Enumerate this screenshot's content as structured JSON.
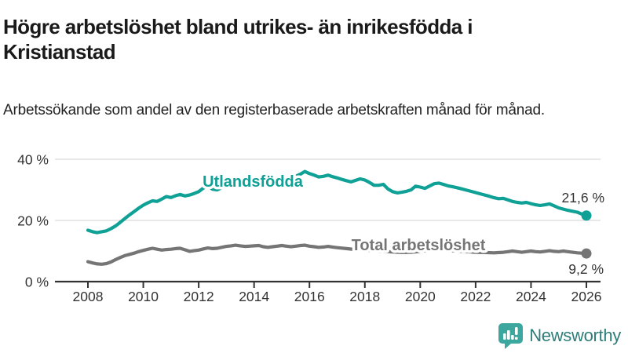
{
  "header": {
    "title": "Högre arbetslöshet bland utrikes- än inrikesfödda i Kristianstad",
    "subtitle": "Arbetssökande som andel av den registerbaserade arbetskraften månad för månad."
  },
  "footer": {
    "brand": "Newsworthy",
    "brand_color": "#2e7d78",
    "icon_color": "#3ba79e"
  },
  "chart_data": {
    "type": "line",
    "title": "",
    "xlabel": "",
    "ylabel": "",
    "xlim": [
      2006.8,
      2026.5
    ],
    "ylim": [
      0,
      43
    ],
    "grid": "horizontal",
    "x_ticks": [
      2008,
      2010,
      2012,
      2014,
      2016,
      2018,
      2020,
      2022,
      2024,
      2026
    ],
    "x_tick_labels": [
      "2008",
      "2010",
      "2012",
      "2014",
      "2016",
      "2018",
      "2020",
      "2022",
      "2024",
      "2026"
    ],
    "y_ticks": [
      0,
      20,
      40
    ],
    "y_tick_labels": [
      "0 %",
      "20 %",
      "40 %"
    ],
    "axis_color": "#333333",
    "gridline_color": "#d9d9d9",
    "series": [
      {
        "name": "Total arbetslöshet",
        "color": "#757575",
        "end_value": 9.2,
        "end_label": "9,2 %",
        "points": [
          [
            2008.0,
            6.5
          ],
          [
            2008.17,
            6.1
          ],
          [
            2008.33,
            5.8
          ],
          [
            2008.5,
            5.7
          ],
          [
            2008.67,
            5.9
          ],
          [
            2008.83,
            6.4
          ],
          [
            2009.0,
            7.2
          ],
          [
            2009.17,
            7.9
          ],
          [
            2009.33,
            8.5
          ],
          [
            2009.5,
            8.9
          ],
          [
            2009.67,
            9.3
          ],
          [
            2009.83,
            9.8
          ],
          [
            2010.0,
            10.2
          ],
          [
            2010.17,
            10.6
          ],
          [
            2010.33,
            10.9
          ],
          [
            2010.5,
            10.6
          ],
          [
            2010.67,
            10.3
          ],
          [
            2010.83,
            10.5
          ],
          [
            2011.0,
            10.6
          ],
          [
            2011.17,
            10.8
          ],
          [
            2011.33,
            10.9
          ],
          [
            2011.5,
            10.4
          ],
          [
            2011.67,
            9.9
          ],
          [
            2011.83,
            10.1
          ],
          [
            2012.0,
            10.3
          ],
          [
            2012.17,
            10.7
          ],
          [
            2012.33,
            11.0
          ],
          [
            2012.5,
            10.8
          ],
          [
            2012.67,
            10.9
          ],
          [
            2012.83,
            11.2
          ],
          [
            2013.0,
            11.5
          ],
          [
            2013.17,
            11.7
          ],
          [
            2013.33,
            11.9
          ],
          [
            2013.5,
            11.7
          ],
          [
            2013.67,
            11.5
          ],
          [
            2013.83,
            11.6
          ],
          [
            2014.0,
            11.7
          ],
          [
            2014.17,
            11.8
          ],
          [
            2014.33,
            11.4
          ],
          [
            2014.5,
            11.2
          ],
          [
            2014.67,
            11.4
          ],
          [
            2014.83,
            11.6
          ],
          [
            2015.0,
            11.8
          ],
          [
            2015.17,
            11.6
          ],
          [
            2015.33,
            11.4
          ],
          [
            2015.5,
            11.6
          ],
          [
            2015.67,
            11.8
          ],
          [
            2015.83,
            11.9
          ],
          [
            2016.0,
            11.6
          ],
          [
            2016.17,
            11.4
          ],
          [
            2016.33,
            11.2
          ],
          [
            2016.5,
            11.3
          ],
          [
            2016.67,
            11.5
          ],
          [
            2016.83,
            11.3
          ],
          [
            2017.0,
            11.1
          ],
          [
            2017.33,
            10.8
          ],
          [
            2017.67,
            10.5
          ],
          [
            2018.0,
            10.3
          ],
          [
            2018.33,
            10.1
          ],
          [
            2018.67,
            9.9
          ],
          [
            2019.0,
            9.7
          ],
          [
            2019.33,
            9.5
          ],
          [
            2019.67,
            9.6
          ],
          [
            2020.0,
            9.9
          ],
          [
            2020.33,
            10.3
          ],
          [
            2020.67,
            10.4
          ],
          [
            2021.0,
            10.2
          ],
          [
            2021.33,
            10.0
          ],
          [
            2021.67,
            9.8
          ],
          [
            2022.0,
            9.6
          ],
          [
            2022.33,
            9.5
          ],
          [
            2022.67,
            9.4
          ],
          [
            2023.0,
            9.6
          ],
          [
            2023.17,
            9.8
          ],
          [
            2023.33,
            10.0
          ],
          [
            2023.5,
            9.8
          ],
          [
            2023.67,
            9.6
          ],
          [
            2023.83,
            9.8
          ],
          [
            2024.0,
            10.0
          ],
          [
            2024.17,
            9.8
          ],
          [
            2024.33,
            9.7
          ],
          [
            2024.5,
            9.9
          ],
          [
            2024.67,
            10.1
          ],
          [
            2024.83,
            9.9
          ],
          [
            2025.0,
            9.8
          ],
          [
            2025.17,
            10.0
          ],
          [
            2025.33,
            9.8
          ],
          [
            2025.5,
            9.6
          ],
          [
            2025.67,
            9.4
          ],
          [
            2025.83,
            9.3
          ],
          [
            2026.0,
            9.2
          ]
        ]
      },
      {
        "name": "Utlandsfödda",
        "color": "#0fa096",
        "end_value": 21.6,
        "end_label": "21,6 %",
        "points": [
          [
            2008.0,
            16.8
          ],
          [
            2008.17,
            16.3
          ],
          [
            2008.33,
            16.0
          ],
          [
            2008.5,
            16.3
          ],
          [
            2008.67,
            16.6
          ],
          [
            2008.83,
            17.3
          ],
          [
            2009.0,
            18.2
          ],
          [
            2009.17,
            19.4
          ],
          [
            2009.33,
            20.6
          ],
          [
            2009.5,
            21.8
          ],
          [
            2009.67,
            22.9
          ],
          [
            2009.83,
            24.0
          ],
          [
            2010.0,
            25.0
          ],
          [
            2010.17,
            25.8
          ],
          [
            2010.33,
            26.4
          ],
          [
            2010.5,
            26.2
          ],
          [
            2010.67,
            27.0
          ],
          [
            2010.83,
            27.8
          ],
          [
            2011.0,
            27.5
          ],
          [
            2011.17,
            28.1
          ],
          [
            2011.33,
            28.5
          ],
          [
            2011.5,
            28.0
          ],
          [
            2011.67,
            28.3
          ],
          [
            2011.83,
            28.8
          ],
          [
            2012.0,
            29.4
          ],
          [
            2012.17,
            30.6
          ],
          [
            2012.33,
            31.2
          ],
          [
            2012.5,
            30.2
          ],
          [
            2012.67,
            30.0
          ],
          [
            2012.83,
            30.7
          ],
          [
            2013.0,
            31.3
          ],
          [
            2013.17,
            31.7
          ],
          [
            2013.33,
            32.1
          ],
          [
            2013.5,
            31.8
          ],
          [
            2013.67,
            32.0
          ],
          [
            2013.83,
            32.4
          ],
          [
            2014.0,
            32.8
          ],
          [
            2014.17,
            33.1
          ],
          [
            2014.33,
            33.3
          ],
          [
            2014.5,
            32.9
          ],
          [
            2014.67,
            33.1
          ],
          [
            2014.83,
            33.5
          ],
          [
            2015.0,
            33.8
          ],
          [
            2015.17,
            34.1
          ],
          [
            2015.33,
            33.9
          ],
          [
            2015.5,
            34.4
          ],
          [
            2015.67,
            35.1
          ],
          [
            2015.83,
            36.0
          ],
          [
            2016.0,
            35.3
          ],
          [
            2016.17,
            34.8
          ],
          [
            2016.33,
            34.2
          ],
          [
            2016.5,
            34.4
          ],
          [
            2016.67,
            34.8
          ],
          [
            2016.83,
            34.3
          ],
          [
            2017.0,
            33.9
          ],
          [
            2017.17,
            33.4
          ],
          [
            2017.33,
            33.0
          ],
          [
            2017.5,
            32.6
          ],
          [
            2017.67,
            33.1
          ],
          [
            2017.83,
            33.6
          ],
          [
            2018.0,
            33.2
          ],
          [
            2018.17,
            32.4
          ],
          [
            2018.33,
            31.5
          ],
          [
            2018.5,
            31.5
          ],
          [
            2018.67,
            31.8
          ],
          [
            2018.83,
            30.3
          ],
          [
            2019.0,
            29.4
          ],
          [
            2019.17,
            29.0
          ],
          [
            2019.33,
            29.2
          ],
          [
            2019.5,
            29.5
          ],
          [
            2019.67,
            30.0
          ],
          [
            2019.83,
            31.2
          ],
          [
            2020.0,
            30.9
          ],
          [
            2020.17,
            30.5
          ],
          [
            2020.33,
            31.2
          ],
          [
            2020.5,
            32.0
          ],
          [
            2020.67,
            32.2
          ],
          [
            2020.83,
            31.8
          ],
          [
            2021.0,
            31.3
          ],
          [
            2021.17,
            31.0
          ],
          [
            2021.33,
            30.7
          ],
          [
            2021.5,
            30.3
          ],
          [
            2021.67,
            29.9
          ],
          [
            2021.83,
            29.5
          ],
          [
            2022.0,
            29.1
          ],
          [
            2022.17,
            28.7
          ],
          [
            2022.33,
            28.3
          ],
          [
            2022.5,
            27.9
          ],
          [
            2022.67,
            27.4
          ],
          [
            2022.83,
            27.1
          ],
          [
            2023.0,
            27.2
          ],
          [
            2023.17,
            26.7
          ],
          [
            2023.33,
            26.2
          ],
          [
            2023.5,
            25.9
          ],
          [
            2023.67,
            25.7
          ],
          [
            2023.83,
            25.9
          ],
          [
            2024.0,
            25.5
          ],
          [
            2024.17,
            25.1
          ],
          [
            2024.33,
            24.9
          ],
          [
            2024.5,
            25.1
          ],
          [
            2024.67,
            25.4
          ],
          [
            2024.83,
            24.8
          ],
          [
            2025.0,
            24.1
          ],
          [
            2025.17,
            23.7
          ],
          [
            2025.33,
            23.3
          ],
          [
            2025.5,
            23.0
          ],
          [
            2025.67,
            22.7
          ],
          [
            2025.83,
            22.1
          ],
          [
            2026.0,
            21.6
          ]
        ]
      }
    ],
    "legend_position": "inline-labels"
  }
}
